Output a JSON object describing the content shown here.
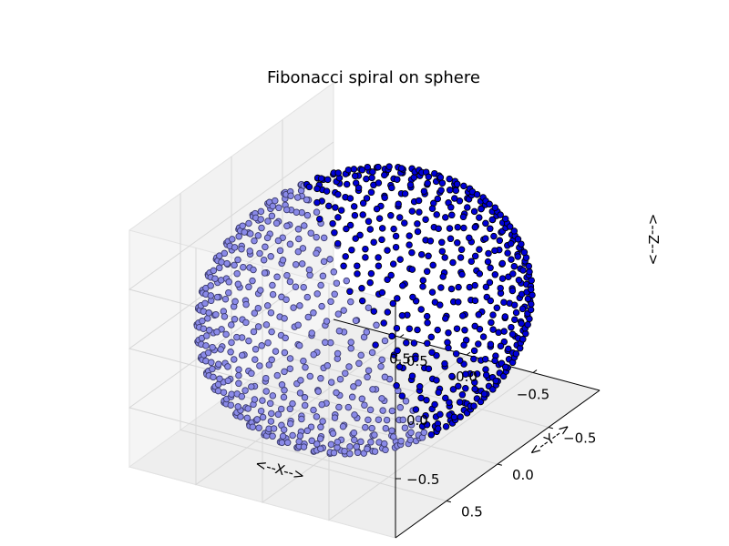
{
  "chart_data": {
    "type": "scatter",
    "title": "Fibonacci spiral on sphere",
    "xlabel": "<--X-->",
    "ylabel": "<--Y-->",
    "zlabel": "<--Z-->",
    "projection": "3d",
    "xlim": [
      -1,
      1
    ],
    "ylim": [
      -1,
      1
    ],
    "zlim": [
      -1,
      1
    ],
    "xticks": [
      {
        "value": -0.5,
        "label": "−0.5"
      },
      {
        "value": 0.0,
        "label": "0.0"
      },
      {
        "value": 0.5,
        "label": "0.5"
      }
    ],
    "yticks": [
      {
        "value": -0.5,
        "label": "−0.5"
      },
      {
        "value": 0.0,
        "label": "0.0"
      },
      {
        "value": 0.5,
        "label": "0.5"
      }
    ],
    "zticks": [
      {
        "value": -0.5,
        "label": "−0.5"
      },
      {
        "value": 0.0,
        "label": "0.0"
      },
      {
        "value": 0.5,
        "label": "0.5"
      }
    ],
    "grid": true,
    "series": [
      {
        "generator": "fibonacci_sphere",
        "n_points": 1000,
        "radius": 1,
        "marker": "circle",
        "color": "#0000ff"
      }
    ]
  }
}
